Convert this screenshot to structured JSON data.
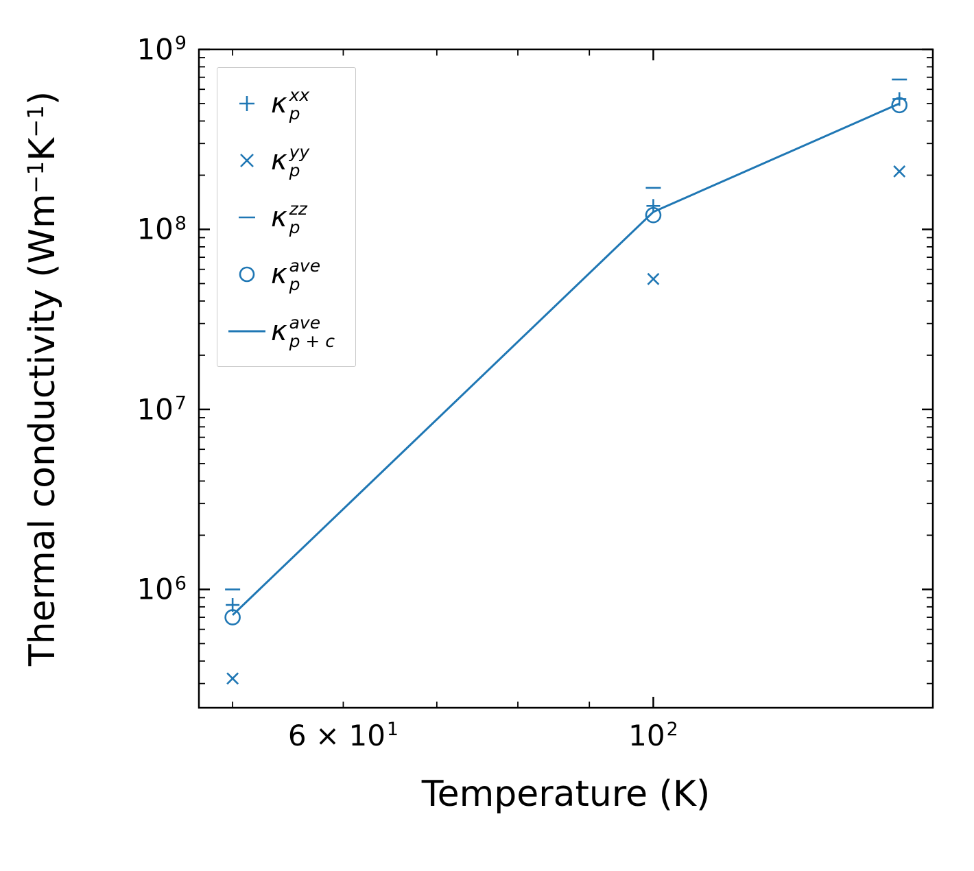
{
  "figure": {
    "background": "#ffffff"
  },
  "axes": {
    "xlabel": "Temperature (K)",
    "ylabel_pre": "Thermal conductivity (Wm",
    "ylabel_sup1": "−1",
    "ylabel_mid": "K",
    "ylabel_sup2": "−1",
    "ylabel_post": ")"
  },
  "legend": {
    "items": [
      {
        "marker": "plus",
        "kappa": "κ",
        "sup": "xx",
        "sub": "p"
      },
      {
        "marker": "x",
        "kappa": "κ",
        "sup": "yy",
        "sub": "p"
      },
      {
        "marker": "dash",
        "kappa": "κ",
        "sup": "zz",
        "sub": "p"
      },
      {
        "marker": "circle",
        "kappa": "κ",
        "sup": "ave",
        "sub": "p"
      },
      {
        "marker": "line",
        "kappa": "κ",
        "sup": "ave",
        "sub": "p + c"
      }
    ]
  },
  "chart_data": {
    "type": "line",
    "xscale": "log",
    "yscale": "log",
    "title": "",
    "xlabel": "Temperature (K)",
    "ylabel": "Thermal conductivity (Wm⁻¹K⁻¹)",
    "color": "#1f77b4",
    "x": [
      50,
      100,
      150
    ],
    "xlim": [
      47.3,
      158.5
    ],
    "ylim": [
      220000,
      1000000000
    ],
    "series": [
      {
        "name": "κ_p^xx",
        "marker": "plus",
        "values": [
          820000,
          135000000,
          530000000
        ]
      },
      {
        "name": "κ_p^yy",
        "marker": "x",
        "values": [
          320000,
          53000000,
          210000000
        ]
      },
      {
        "name": "κ_p^zz",
        "marker": "dash",
        "values": [
          1000000,
          170000000,
          680000000
        ]
      },
      {
        "name": "κ_p^ave",
        "marker": "circle",
        "values": [
          700000,
          120000000,
          490000000
        ]
      },
      {
        "name": "κ_p+c^ave",
        "marker": "line",
        "values": [
          720000,
          125000000,
          500000000
        ]
      }
    ],
    "xticks": [
      {
        "v": 60,
        "base": "6 × 10",
        "exp": "1"
      },
      {
        "v": 100,
        "base": "10",
        "exp": "2"
      }
    ],
    "yticks": [
      {
        "v": 1000000,
        "base": "10",
        "exp": "6"
      },
      {
        "v": 10000000,
        "base": "10",
        "exp": "7"
      },
      {
        "v": 100000000,
        "base": "10",
        "exp": "8"
      },
      {
        "v": 1000000000,
        "base": "10",
        "exp": "9"
      }
    ],
    "grid": false,
    "legend_position": "upper left"
  }
}
